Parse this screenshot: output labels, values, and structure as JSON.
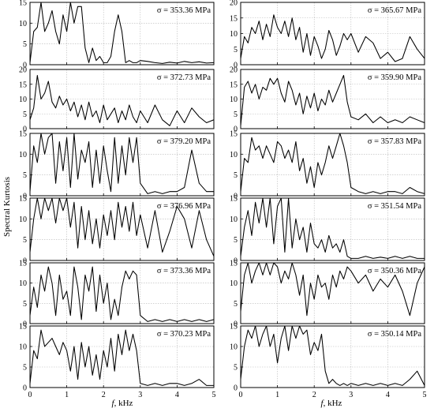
{
  "figure": {
    "ylabel": "Spectral Kurtosis",
    "xlabel_symbol": "f",
    "xlabel_unit": ", kHz"
  },
  "chart_data": [
    {
      "type": "line",
      "annotation": "σ = 353.36 MPa",
      "ylim": [
        0,
        15
      ],
      "yticks": [
        0,
        5,
        10,
        15
      ],
      "xlim": [
        0,
        5
      ],
      "xticks": [
        0,
        1,
        2,
        3,
        4,
        5
      ],
      "grid": true,
      "x": [
        0,
        0.1,
        0.2,
        0.3,
        0.4,
        0.5,
        0.6,
        0.7,
        0.8,
        0.9,
        1.0,
        1.1,
        1.2,
        1.3,
        1.4,
        1.5,
        1.6,
        1.7,
        1.8,
        1.9,
        2.0,
        2.1,
        2.2,
        2.3,
        2.4,
        2.5,
        2.6,
        2.7,
        2.8,
        2.9,
        3.0,
        3.2,
        3.4,
        3.6,
        3.8,
        4.0,
        4.2,
        4.4,
        4.6,
        4.8,
        5.0
      ],
      "y": [
        0.5,
        8,
        9,
        15,
        8,
        10,
        13,
        8,
        5,
        12,
        8,
        15,
        10,
        14,
        14,
        4,
        0.5,
        4,
        1,
        2,
        0.5,
        0.5,
        2,
        8,
        12,
        8,
        0.5,
        1,
        0.5,
        0.5,
        1,
        0.8,
        0.5,
        0.3,
        0.6,
        0.4,
        0.8,
        0.5,
        0.7,
        0.4,
        0.5
      ]
    },
    {
      "type": "line",
      "annotation": "σ = 365.67 MPa",
      "ylim": [
        0,
        20
      ],
      "yticks": [
        0,
        5,
        10,
        15,
        20
      ],
      "xlim": [
        0,
        5
      ],
      "xticks": [
        0,
        1,
        2,
        3,
        4,
        5
      ],
      "grid": true,
      "x": [
        0,
        0.1,
        0.2,
        0.3,
        0.4,
        0.5,
        0.6,
        0.7,
        0.8,
        0.9,
        1.0,
        1.1,
        1.2,
        1.3,
        1.4,
        1.5,
        1.6,
        1.7,
        1.8,
        1.9,
        2.0,
        2.1,
        2.2,
        2.3,
        2.4,
        2.5,
        2.6,
        2.7,
        2.8,
        2.9,
        3.0,
        3.2,
        3.4,
        3.6,
        3.8,
        4.0,
        4.2,
        4.4,
        4.6,
        4.8,
        5.0
      ],
      "y": [
        2,
        9,
        7,
        12,
        10,
        14,
        8,
        13,
        9,
        16,
        12,
        10,
        14,
        9,
        15,
        8,
        12,
        4,
        10,
        3,
        9,
        6,
        2,
        5,
        11,
        8,
        3,
        6,
        10,
        8,
        10,
        4,
        9,
        7,
        2,
        4,
        1,
        2,
        9,
        5,
        2
      ]
    },
    {
      "type": "line",
      "annotation": "σ = 372.73 MPa",
      "ylim": [
        0,
        20
      ],
      "yticks": [
        0,
        5,
        10,
        15,
        20
      ],
      "xlim": [
        0,
        5
      ],
      "xticks": [
        0,
        1,
        2,
        3,
        4,
        5
      ],
      "grid": true,
      "x": [
        0,
        0.1,
        0.2,
        0.3,
        0.4,
        0.5,
        0.6,
        0.7,
        0.8,
        0.9,
        1.0,
        1.1,
        1.2,
        1.3,
        1.4,
        1.5,
        1.6,
        1.7,
        1.8,
        1.9,
        2.0,
        2.1,
        2.2,
        2.3,
        2.4,
        2.5,
        2.6,
        2.7,
        2.8,
        2.9,
        3.0,
        3.2,
        3.4,
        3.6,
        3.8,
        4.0,
        4.2,
        4.4,
        4.6,
        4.8,
        5.0
      ],
      "y": [
        3,
        7,
        18,
        10,
        12,
        16,
        9,
        7,
        11,
        8,
        10,
        6,
        9,
        4,
        8,
        3,
        9,
        4,
        6,
        2,
        8,
        3,
        5,
        7,
        2,
        6,
        3,
        8,
        4,
        2,
        6,
        2,
        8,
        3,
        1,
        6,
        2,
        7,
        4,
        2,
        3
      ]
    },
    {
      "type": "line",
      "annotation": "σ = 359.90 MPa",
      "ylim": [
        0,
        20
      ],
      "yticks": [
        0,
        5,
        10,
        15,
        20
      ],
      "xlim": [
        0,
        5
      ],
      "xticks": [
        0,
        1,
        2,
        3,
        4,
        5
      ],
      "grid": true,
      "x": [
        0,
        0.1,
        0.2,
        0.3,
        0.4,
        0.5,
        0.6,
        0.7,
        0.8,
        0.9,
        1.0,
        1.1,
        1.2,
        1.3,
        1.4,
        1.5,
        1.6,
        1.7,
        1.8,
        1.9,
        2.0,
        2.1,
        2.2,
        2.3,
        2.4,
        2.5,
        2.6,
        2.7,
        2.8,
        2.9,
        3.0,
        3.2,
        3.4,
        3.6,
        3.8,
        4.0,
        4.2,
        4.4,
        4.6,
        4.8,
        5.0
      ],
      "y": [
        1,
        14,
        16,
        12,
        15,
        10,
        14,
        13,
        17,
        15,
        17,
        12,
        9,
        16,
        13,
        8,
        12,
        5,
        11,
        7,
        12,
        6,
        10,
        8,
        13,
        9,
        12,
        15,
        18,
        9,
        4,
        3,
        5,
        2,
        4,
        2,
        3,
        2,
        4,
        3,
        2
      ]
    },
    {
      "type": "line",
      "annotation": "σ = 379.20 MPa",
      "ylim": [
        0,
        15
      ],
      "yticks": [
        0,
        5,
        10,
        15
      ],
      "xlim": [
        0,
        5
      ],
      "xticks": [
        0,
        1,
        2,
        3,
        4,
        5
      ],
      "grid": true,
      "x": [
        0,
        0.1,
        0.2,
        0.3,
        0.4,
        0.5,
        0.6,
        0.7,
        0.8,
        0.9,
        1.0,
        1.1,
        1.2,
        1.3,
        1.4,
        1.5,
        1.6,
        1.7,
        1.8,
        1.9,
        2.0,
        2.1,
        2.2,
        2.3,
        2.4,
        2.5,
        2.6,
        2.7,
        2.8,
        2.9,
        3.0,
        3.2,
        3.4,
        3.6,
        3.8,
        4.0,
        4.2,
        4.4,
        4.6,
        4.8,
        5.0
      ],
      "y": [
        1,
        12,
        8,
        15,
        10,
        14,
        15,
        3,
        13,
        6,
        14,
        2,
        17,
        4,
        11,
        8,
        13,
        2,
        11,
        3,
        12,
        6,
        1,
        14,
        3,
        12,
        5,
        14,
        8,
        14,
        3,
        0.5,
        1,
        0.5,
        1,
        1,
        2,
        11,
        3,
        1,
        1
      ]
    },
    {
      "type": "line",
      "annotation": "σ = 357.83 MPa",
      "ylim": [
        0,
        15
      ],
      "yticks": [
        0,
        5,
        10,
        15
      ],
      "xlim": [
        0,
        5
      ],
      "xticks": [
        0,
        1,
        2,
        3,
        4,
        5
      ],
      "grid": true,
      "x": [
        0,
        0.1,
        0.2,
        0.3,
        0.4,
        0.5,
        0.6,
        0.7,
        0.8,
        0.9,
        1.0,
        1.1,
        1.2,
        1.3,
        1.4,
        1.5,
        1.6,
        1.7,
        1.8,
        1.9,
        2.0,
        2.1,
        2.2,
        2.3,
        2.4,
        2.5,
        2.6,
        2.7,
        2.8,
        2.9,
        3.0,
        3.2,
        3.4,
        3.6,
        3.8,
        4.0,
        4.2,
        4.4,
        4.6,
        4.8,
        5.0
      ],
      "y": [
        1,
        9,
        8,
        14,
        11,
        12,
        9,
        12,
        10,
        8,
        13,
        12,
        9,
        11,
        8,
        13,
        6,
        9,
        3,
        7,
        2,
        8,
        5,
        8,
        12,
        9,
        12,
        16,
        12,
        8,
        2,
        1,
        0.5,
        1,
        0.5,
        1,
        1,
        0.5,
        2,
        1,
        0.5
      ]
    },
    {
      "type": "line",
      "annotation": "σ = 376.96 MPa",
      "ylim": [
        0,
        15
      ],
      "yticks": [
        0,
        5,
        10,
        15
      ],
      "xlim": [
        0,
        5
      ],
      "xticks": [
        0,
        1,
        2,
        3,
        4,
        5
      ],
      "grid": true,
      "x": [
        0,
        0.1,
        0.2,
        0.3,
        0.4,
        0.5,
        0.6,
        0.7,
        0.8,
        0.9,
        1.0,
        1.1,
        1.2,
        1.3,
        1.4,
        1.5,
        1.6,
        1.7,
        1.8,
        1.9,
        2.0,
        2.1,
        2.2,
        2.3,
        2.4,
        2.5,
        2.6,
        2.7,
        2.8,
        2.9,
        3.0,
        3.2,
        3.4,
        3.6,
        3.8,
        4.0,
        4.2,
        4.4,
        4.6,
        4.8,
        5.0
      ],
      "y": [
        2,
        10,
        15,
        10,
        16,
        12,
        15,
        9,
        16,
        12,
        15,
        8,
        14,
        3,
        13,
        5,
        12,
        4,
        10,
        3,
        11,
        6,
        12,
        5,
        14,
        8,
        13,
        7,
        14,
        6,
        11,
        3,
        12,
        2,
        7,
        13,
        10,
        3,
        12,
        5,
        1
      ]
    },
    {
      "type": "line",
      "annotation": "σ = 351.54 MPa",
      "ylim": [
        0,
        15
      ],
      "yticks": [
        0,
        5,
        10,
        15
      ],
      "xlim": [
        0,
        5
      ],
      "xticks": [
        0,
        1,
        2,
        3,
        4,
        5
      ],
      "grid": true,
      "x": [
        0,
        0.1,
        0.2,
        0.3,
        0.4,
        0.5,
        0.6,
        0.7,
        0.8,
        0.9,
        1.0,
        1.1,
        1.2,
        1.3,
        1.4,
        1.5,
        1.6,
        1.7,
        1.8,
        1.9,
        2.0,
        2.1,
        2.2,
        2.3,
        2.4,
        2.5,
        2.6,
        2.7,
        2.8,
        2.9,
        3.0,
        3.2,
        3.4,
        3.6,
        3.8,
        4.0,
        4.2,
        4.4,
        4.6,
        4.8,
        5.0
      ],
      "y": [
        1,
        8,
        12,
        6,
        14,
        9,
        16,
        8,
        17,
        4,
        13,
        15,
        2,
        16,
        3,
        10,
        5,
        8,
        2,
        9,
        4,
        3,
        5,
        2,
        6,
        3,
        4,
        2,
        5,
        1,
        0.5,
        0.5,
        1,
        0.5,
        0.8,
        0.5,
        1,
        0.5,
        1,
        0.5,
        0.5
      ]
    },
    {
      "type": "line",
      "annotation": "σ = 373.36 MPa",
      "ylim": [
        0,
        15
      ],
      "yticks": [
        0,
        5,
        10,
        15
      ],
      "xlim": [
        0,
        5
      ],
      "xticks": [
        0,
        1,
        2,
        3,
        4,
        5
      ],
      "grid": true,
      "x": [
        0,
        0.1,
        0.2,
        0.3,
        0.4,
        0.5,
        0.6,
        0.7,
        0.8,
        0.9,
        1.0,
        1.1,
        1.2,
        1.3,
        1.4,
        1.5,
        1.6,
        1.7,
        1.8,
        1.9,
        2.0,
        2.1,
        2.2,
        2.3,
        2.4,
        2.5,
        2.6,
        2.7,
        2.8,
        2.9,
        3.0,
        3.2,
        3.4,
        3.6,
        3.8,
        4.0,
        4.2,
        4.4,
        4.6,
        4.8,
        5.0
      ],
      "y": [
        2,
        9,
        4,
        12,
        8,
        14,
        10,
        2,
        12,
        6,
        8,
        2,
        14,
        9,
        1,
        12,
        8,
        14,
        3,
        12,
        5,
        10,
        1,
        6,
        2,
        9,
        13,
        11,
        13,
        12,
        2,
        0.5,
        1,
        0.5,
        1,
        0.5,
        1,
        0.5,
        1,
        0.5,
        1
      ]
    },
    {
      "type": "line",
      "annotation": "σ = 350.36 MPa",
      "ylim": [
        0,
        15
      ],
      "yticks": [
        0,
        5,
        10,
        15
      ],
      "xlim": [
        0,
        5
      ],
      "xticks": [
        0,
        1,
        2,
        3,
        4,
        5
      ],
      "grid": true,
      "x": [
        0,
        0.1,
        0.2,
        0.3,
        0.4,
        0.5,
        0.6,
        0.7,
        0.8,
        0.9,
        1.0,
        1.1,
        1.2,
        1.3,
        1.4,
        1.5,
        1.6,
        1.7,
        1.8,
        1.9,
        2.0,
        2.1,
        2.2,
        2.3,
        2.4,
        2.5,
        2.6,
        2.7,
        2.8,
        2.9,
        3.0,
        3.2,
        3.4,
        3.6,
        3.8,
        4.0,
        4.2,
        4.4,
        4.6,
        4.8,
        5.0
      ],
      "y": [
        3,
        12,
        15,
        10,
        13,
        16,
        12,
        15,
        12,
        18,
        14,
        10,
        13,
        11,
        15,
        12,
        7,
        12,
        2,
        10,
        6,
        12,
        9,
        10,
        6,
        12,
        9,
        13,
        11,
        14,
        13,
        10,
        12,
        8,
        11,
        9,
        12,
        8,
        2,
        10,
        14
      ]
    },
    {
      "type": "line",
      "annotation": "σ = 370.23 MPa",
      "ylim": [
        0,
        15
      ],
      "yticks": [
        0,
        5,
        10,
        15
      ],
      "xlim": [
        0,
        5
      ],
      "xticks": [
        0,
        1,
        2,
        3,
        4,
        5
      ],
      "grid": true,
      "x": [
        0,
        0.1,
        0.2,
        0.3,
        0.4,
        0.5,
        0.6,
        0.7,
        0.8,
        0.9,
        1.0,
        1.1,
        1.2,
        1.3,
        1.4,
        1.5,
        1.6,
        1.7,
        1.8,
        1.9,
        2.0,
        2.1,
        2.2,
        2.3,
        2.4,
        2.5,
        2.6,
        2.7,
        2.8,
        2.9,
        3.0,
        3.2,
        3.4,
        3.6,
        3.8,
        4.0,
        4.2,
        4.4,
        4.6,
        4.8,
        5.0
      ],
      "y": [
        1,
        9,
        7,
        14,
        10,
        11,
        12,
        10,
        8,
        11,
        9,
        4,
        10,
        2,
        11,
        5,
        10,
        3,
        8,
        2,
        9,
        5,
        12,
        4,
        13,
        8,
        14,
        9,
        13,
        9,
        1,
        0.5,
        1,
        0.5,
        1,
        1,
        0.5,
        1,
        2,
        0.5,
        0.5
      ]
    },
    {
      "type": "line",
      "annotation": "σ = 350.14 MPa",
      "ylim": [
        0,
        15
      ],
      "yticks": [
        0,
        5,
        10,
        15
      ],
      "xlim": [
        0,
        5
      ],
      "xticks": [
        0,
        1,
        2,
        3,
        4,
        5
      ],
      "grid": true,
      "x": [
        0,
        0.1,
        0.2,
        0.3,
        0.4,
        0.5,
        0.6,
        0.7,
        0.8,
        0.9,
        1.0,
        1.1,
        1.2,
        1.3,
        1.4,
        1.5,
        1.6,
        1.7,
        1.8,
        1.9,
        2.0,
        2.1,
        2.2,
        2.3,
        2.4,
        2.5,
        2.6,
        2.7,
        2.8,
        2.9,
        3.0,
        3.2,
        3.4,
        3.6,
        3.8,
        4.0,
        4.2,
        4.4,
        4.6,
        4.8,
        5.0
      ],
      "y": [
        2,
        10,
        14,
        12,
        16,
        10,
        13,
        15,
        10,
        13,
        6,
        12,
        17,
        9,
        15,
        12,
        17,
        13,
        14,
        8,
        11,
        9,
        13,
        4,
        1,
        2,
        1,
        0.5,
        1,
        0.5,
        1,
        0.5,
        1,
        0.5,
        1,
        0.5,
        1,
        0.5,
        2,
        4,
        0.5
      ]
    }
  ]
}
